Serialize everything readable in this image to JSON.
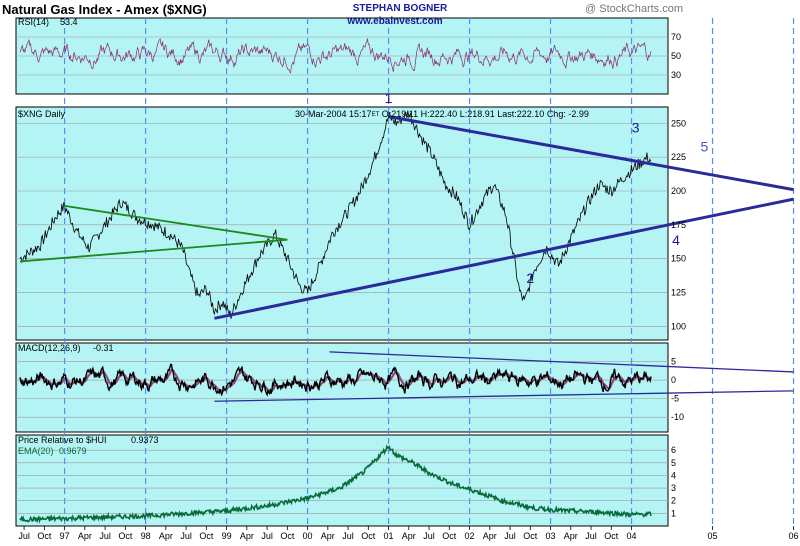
{
  "header": {
    "title": "Natural Gas Index - Amex ($XNG)",
    "author": "STEPHAN BOGNER",
    "url": "www.ebainvest.com",
    "credit": "@ StockCharts.com"
  },
  "colors": {
    "panel_bg": "#b4f4f4",
    "border": "#000000",
    "vgrid": "#5a8cf0",
    "hgrid": "#9a9a9a",
    "rsi_line": "#8c2a6e",
    "price_line": "#000000",
    "macd_line": "#000000",
    "macd_signal": "#8c4a7a",
    "relative_line": "#0a6a3a",
    "trend_blue": "#2a2a9a",
    "trend_green": "#1a8a1a",
    "title_blue": "#1a1a9a"
  },
  "chart_data": [
    {
      "panel": "rsi",
      "type": "line",
      "title": "RSI(14)",
      "last_value": "53.4",
      "yticks": [
        70,
        50,
        30
      ],
      "ylim": [
        10,
        90
      ]
    },
    {
      "panel": "price",
      "type": "line",
      "title": "$XNG Daily",
      "quote": "30-Mar-2004 15:17ET O:219.11 H:222.40 L:218.91 Last:222.10 Chg: -2.99",
      "quote_date": "30-Mar-2004 15:17",
      "quote_tz": "ET",
      "quote_open": "O:219.11",
      "quote_high": "H:222.40",
      "quote_low": "L:218.91",
      "quote_last": "Last:222.10",
      "quote_chg": "Chg: -2.99",
      "yticks": [
        250,
        225,
        200,
        175,
        150,
        125,
        100
      ],
      "ylim": [
        90,
        262
      ],
      "series_points": [
        [
          1996.45,
          150
        ],
        [
          1996.7,
          160
        ],
        [
          1996.9,
          182
        ],
        [
          1997.0,
          189
        ],
        [
          1997.15,
          170
        ],
        [
          1997.3,
          158
        ],
        [
          1997.5,
          175
        ],
        [
          1997.7,
          192
        ],
        [
          1997.9,
          180
        ],
        [
          1998.1,
          175
        ],
        [
          1998.3,
          168
        ],
        [
          1998.45,
          158
        ],
        [
          1998.55,
          138
        ],
        [
          1998.65,
          122
        ],
        [
          1998.75,
          128
        ],
        [
          1998.85,
          112
        ],
        [
          1998.95,
          118
        ],
        [
          1999.05,
          108
        ],
        [
          1999.2,
          128
        ],
        [
          1999.4,
          152
        ],
        [
          1999.6,
          168
        ],
        [
          1999.75,
          150
        ],
        [
          1999.9,
          130
        ],
        [
          2000.0,
          125
        ],
        [
          2000.15,
          145
        ],
        [
          2000.3,
          168
        ],
        [
          2000.5,
          185
        ],
        [
          2000.65,
          200
        ],
        [
          2000.8,
          220
        ],
        [
          2000.95,
          245
        ],
        [
          2001.0,
          255
        ],
        [
          2001.1,
          250
        ],
        [
          2001.25,
          258
        ],
        [
          2001.4,
          240
        ],
        [
          2001.55,
          225
        ],
        [
          2001.7,
          205
        ],
        [
          2001.85,
          195
        ],
        [
          2002.0,
          175
        ],
        [
          2002.15,
          192
        ],
        [
          2002.3,
          205
        ],
        [
          2002.45,
          182
        ],
        [
          2002.55,
          150
        ],
        [
          2002.62,
          125
        ],
        [
          2002.68,
          118
        ],
        [
          2002.8,
          142
        ],
        [
          2002.95,
          158
        ],
        [
          2003.1,
          145
        ],
        [
          2003.25,
          165
        ],
        [
          2003.45,
          190
        ],
        [
          2003.6,
          205
        ],
        [
          2003.75,
          200
        ],
        [
          2003.9,
          210
        ],
        [
          2004.05,
          218
        ],
        [
          2004.2,
          225
        ],
        [
          2004.245,
          222.1
        ]
      ],
      "annotations": [
        {
          "label": "1",
          "x": 2001.0,
          "y": 265
        },
        {
          "label": "2",
          "x": 2002.75,
          "y": 132
        },
        {
          "label": "3",
          "x": 2004.05,
          "y": 243
        },
        {
          "label": "4",
          "x": 2004.55,
          "y": 160
        },
        {
          "label": "5",
          "x": 2004.9,
          "y": 229
        }
      ],
      "trendlines": [
        {
          "color": "blue",
          "points": [
            [
              2001.0,
              255
            ],
            [
              2006.0,
              201
            ]
          ]
        },
        {
          "color": "blue",
          "points": [
            [
              1998.85,
              106
            ],
            [
              2006.0,
              194
            ]
          ]
        },
        {
          "color": "green",
          "points": [
            [
              1996.45,
              148
            ],
            [
              1999.75,
              164
            ]
          ]
        },
        {
          "color": "green",
          "points": [
            [
              1997.0,
              189
            ],
            [
              1999.75,
              164
            ]
          ]
        }
      ]
    },
    {
      "panel": "macd",
      "type": "line",
      "title": "MACD(12,26,9)",
      "last_value": "-0.31",
      "yticks": [
        5,
        0,
        -5,
        -10
      ],
      "ylim": [
        -14,
        10
      ],
      "channel": [
        {
          "points": [
            [
              2000.27,
              7.6
            ],
            [
              2006.0,
              2.2
            ]
          ]
        },
        {
          "points": [
            [
              1998.85,
              -5.7
            ],
            [
              2006.0,
              -2.9
            ]
          ]
        }
      ]
    },
    {
      "panel": "relative",
      "type": "line",
      "title": "Price Relative to $HUI",
      "last_value": "0.9373",
      "ema_title": "EMA(20)",
      "ema_value": "0.9679",
      "yticks": [
        6,
        5,
        4,
        3,
        2,
        1
      ],
      "ylim": [
        0,
        7.2
      ],
      "series_points": [
        [
          1996.45,
          0.5
        ],
        [
          1997.0,
          0.6
        ],
        [
          1997.5,
          0.7
        ],
        [
          1998.0,
          0.8
        ],
        [
          1998.5,
          1.0
        ],
        [
          1999.0,
          1.2
        ],
        [
          1999.5,
          1.6
        ],
        [
          2000.0,
          2.2
        ],
        [
          2000.4,
          3.0
        ],
        [
          2000.7,
          4.3
        ],
        [
          2000.85,
          5.3
        ],
        [
          2001.0,
          6.3
        ],
        [
          2001.1,
          5.6
        ],
        [
          2001.3,
          5.0
        ],
        [
          2001.5,
          4.2
        ],
        [
          2001.8,
          3.3
        ],
        [
          2002.1,
          2.7
        ],
        [
          2002.4,
          2.0
        ],
        [
          2002.8,
          1.4
        ],
        [
          2003.2,
          1.2
        ],
        [
          2003.6,
          1.1
        ],
        [
          2004.0,
          0.9
        ],
        [
          2004.245,
          0.94
        ]
      ]
    }
  ],
  "x_axis": {
    "xlim": [
      1996.4,
      2006.08
    ],
    "month_ticks": [
      {
        "x": 1996.5,
        "label": "Jul"
      },
      {
        "x": 1996.75,
        "label": "Oct"
      },
      {
        "x": 1997.0,
        "label": "97"
      },
      {
        "x": 1997.25,
        "label": "Apr"
      },
      {
        "x": 1997.5,
        "label": "Jul"
      },
      {
        "x": 1997.75,
        "label": "Oct"
      },
      {
        "x": 1998.0,
        "label": "98"
      },
      {
        "x": 1998.25,
        "label": "Apr"
      },
      {
        "x": 1998.5,
        "label": "Jul"
      },
      {
        "x": 1998.75,
        "label": "Oct"
      },
      {
        "x": 1999.0,
        "label": "99"
      },
      {
        "x": 1999.25,
        "label": "Apr"
      },
      {
        "x": 1999.5,
        "label": "Jul"
      },
      {
        "x": 1999.75,
        "label": "Oct"
      },
      {
        "x": 2000.0,
        "label": "00"
      },
      {
        "x": 2000.25,
        "label": "Apr"
      },
      {
        "x": 2000.5,
        "label": "Jul"
      },
      {
        "x": 2000.75,
        "label": "Oct"
      },
      {
        "x": 2001.0,
        "label": "01"
      },
      {
        "x": 2001.25,
        "label": "Apr"
      },
      {
        "x": 2001.5,
        "label": "Jul"
      },
      {
        "x": 2001.75,
        "label": "Oct"
      },
      {
        "x": 2002.0,
        "label": "02"
      },
      {
        "x": 2002.25,
        "label": "Apr"
      },
      {
        "x": 2002.5,
        "label": "Jul"
      },
      {
        "x": 2002.75,
        "label": "Oct"
      },
      {
        "x": 2003.0,
        "label": "03"
      },
      {
        "x": 2003.25,
        "label": "Apr"
      },
      {
        "x": 2003.5,
        "label": "Jul"
      },
      {
        "x": 2003.75,
        "label": "Oct"
      },
      {
        "x": 2004.0,
        "label": "04"
      },
      {
        "x": 2005.0,
        "label": "05"
      },
      {
        "x": 2006.0,
        "label": "06"
      }
    ],
    "year_lines": [
      1997.0,
      1998.0,
      1999.0,
      2000.0,
      2001.0,
      2002.0,
      2003.0,
      2004.0,
      2005.0,
      2006.0
    ]
  }
}
